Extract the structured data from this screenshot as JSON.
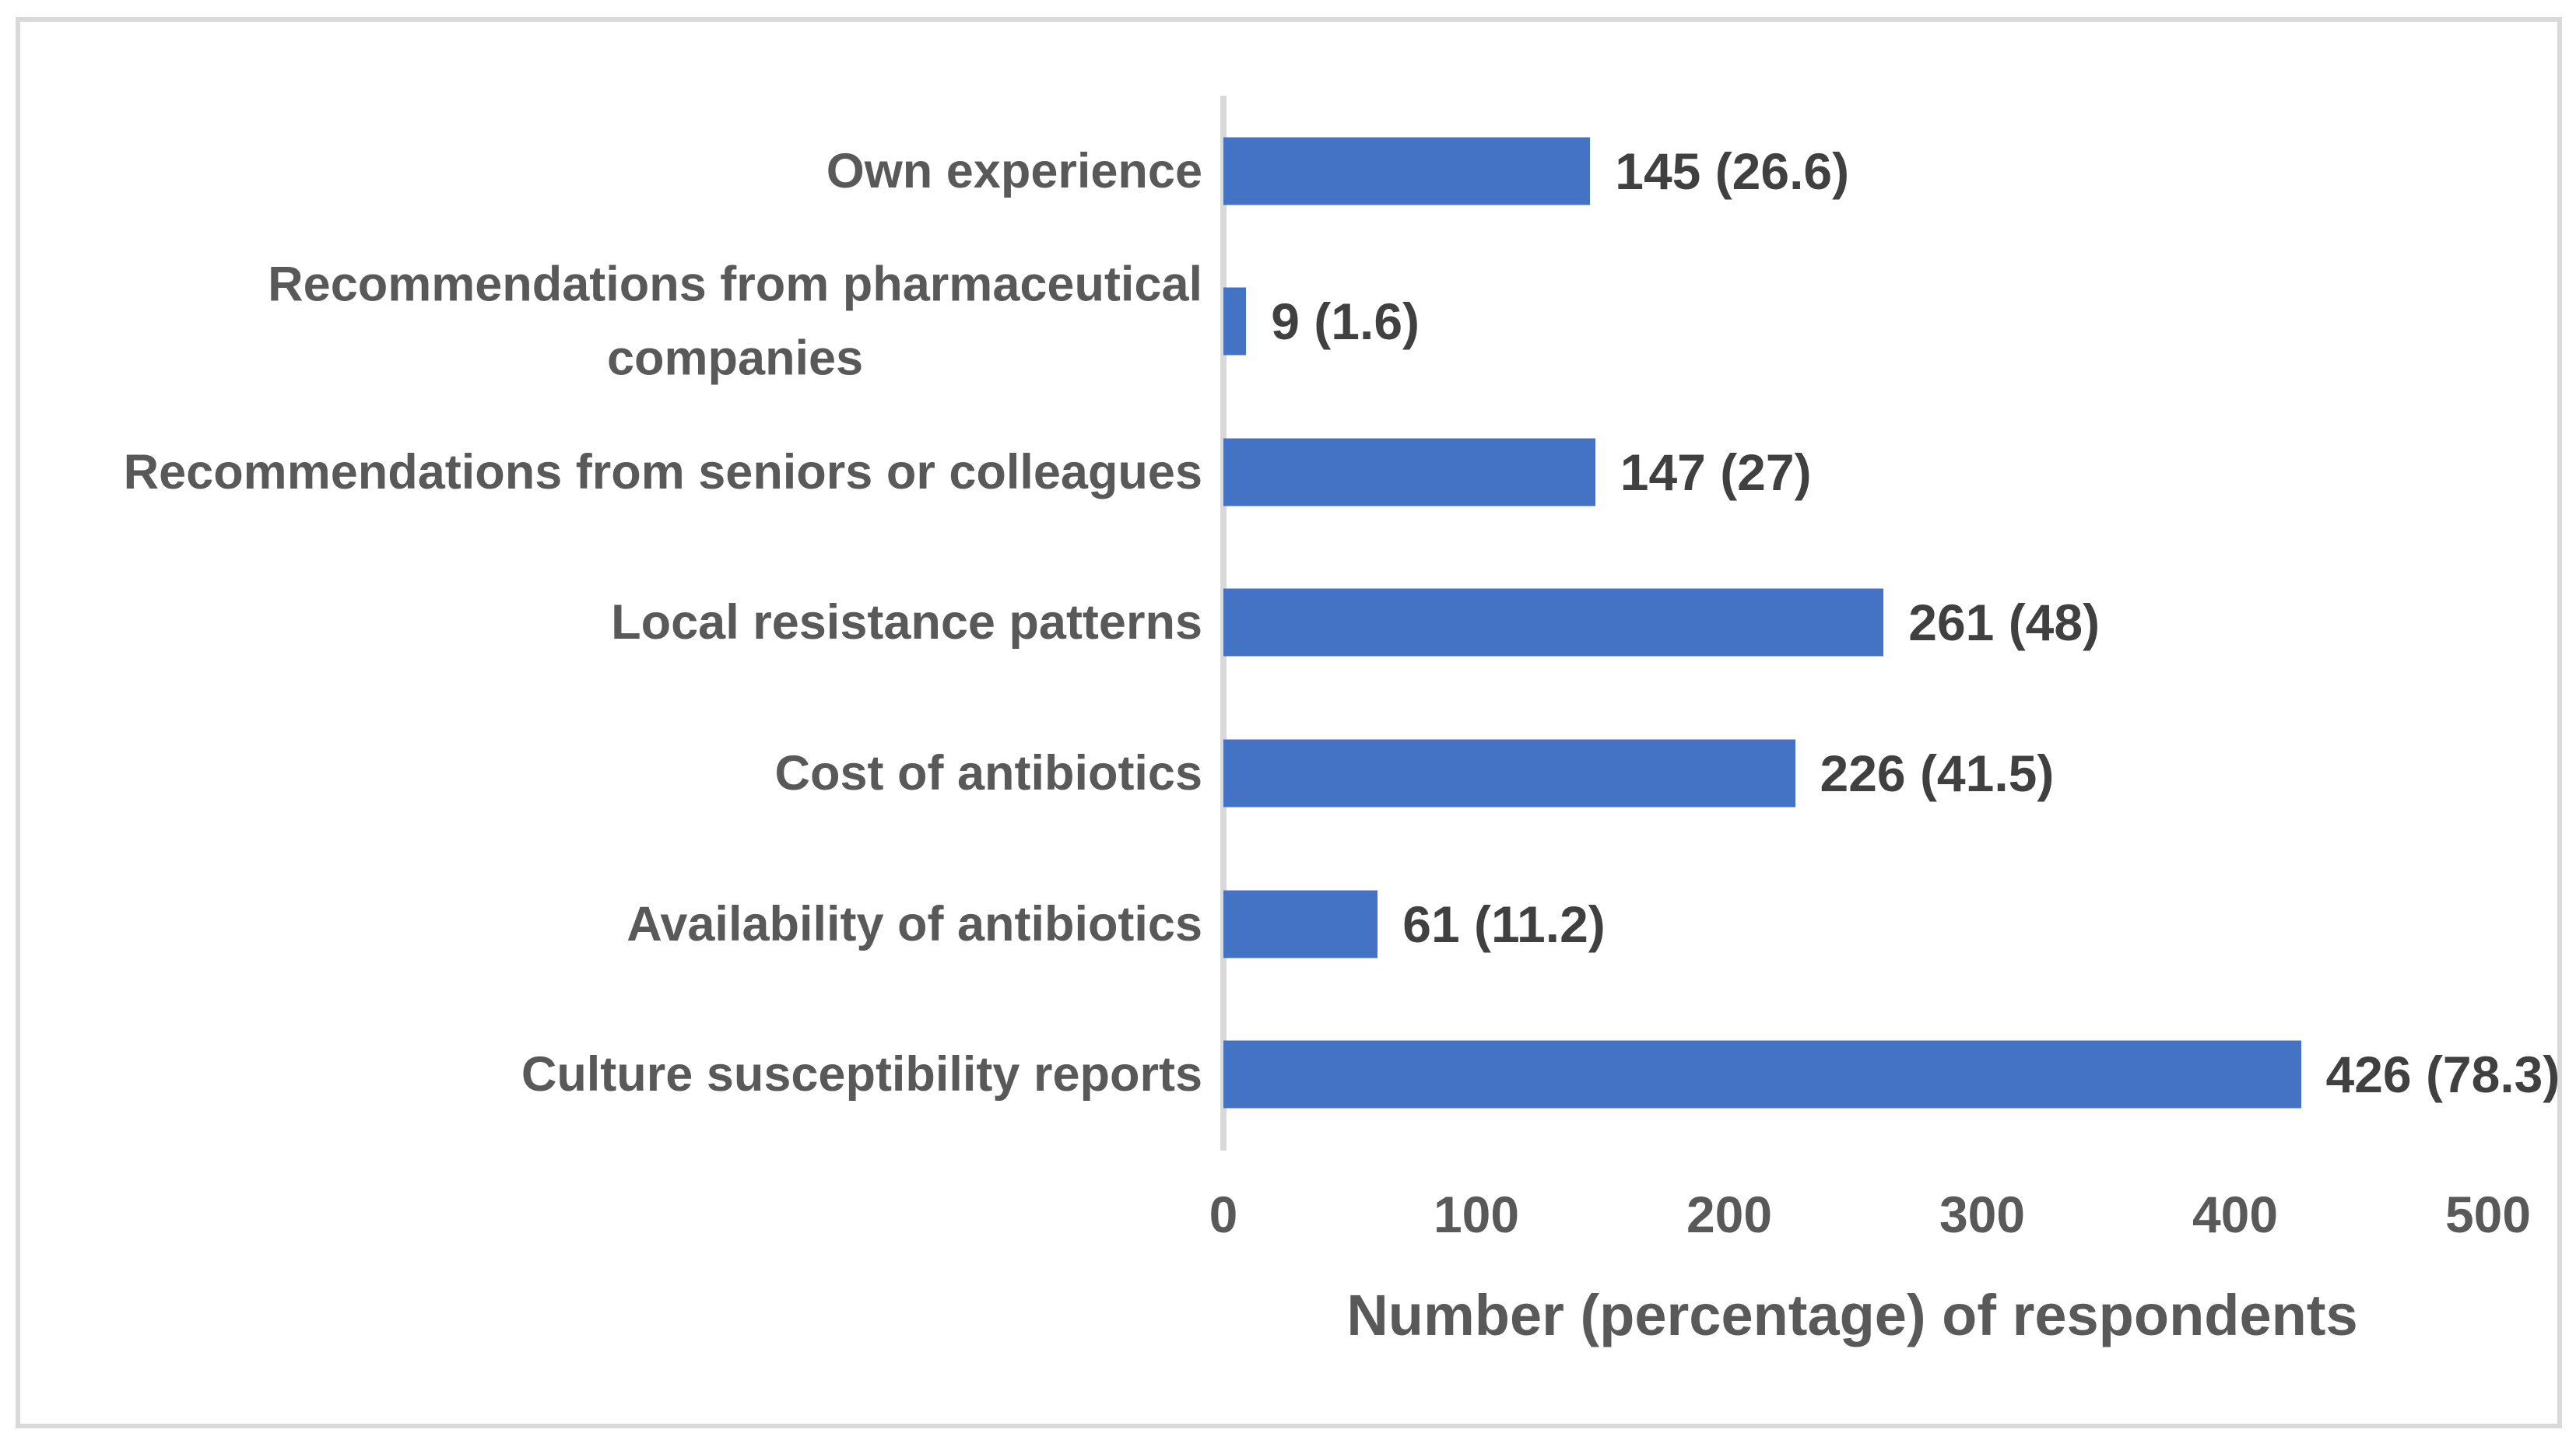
{
  "chart_data": {
    "type": "bar",
    "orientation": "horizontal",
    "categories": [
      "Own experience",
      "Recommendations from pharmaceutical\ncompanies",
      "Recommendations from seniors or colleagues",
      "Local resistance patterns",
      "Cost of antibiotics",
      "Availability of antibiotics",
      "Culture susceptibility reports"
    ],
    "values": [
      145,
      9,
      147,
      261,
      226,
      61,
      426
    ],
    "percentages": [
      26.6,
      1.6,
      27,
      48,
      41.5,
      11.2,
      78.3
    ],
    "value_labels": [
      "145 (26.6)",
      "9 (1.6)",
      "147 (27)",
      "261 (48)",
      "226 (41.5)",
      "61 (11.2)",
      "426 (78.3)"
    ],
    "x_ticks": [
      "0",
      "100",
      "200",
      "300",
      "400",
      "500"
    ],
    "xlim": [
      0,
      500
    ],
    "xlabel": "Number (percentage) of respondents",
    "ylabel": "",
    "title": "",
    "grid": false,
    "legend_position": "none",
    "colors": {
      "bar": "#4472C4",
      "axis_line": "#D9D9D9",
      "border": "#D9D9D9",
      "category_label": "#595959",
      "value_label": "#404040",
      "tick_label": "#595959",
      "axis_title": "#595959",
      "background": "#FFFFFF"
    }
  }
}
